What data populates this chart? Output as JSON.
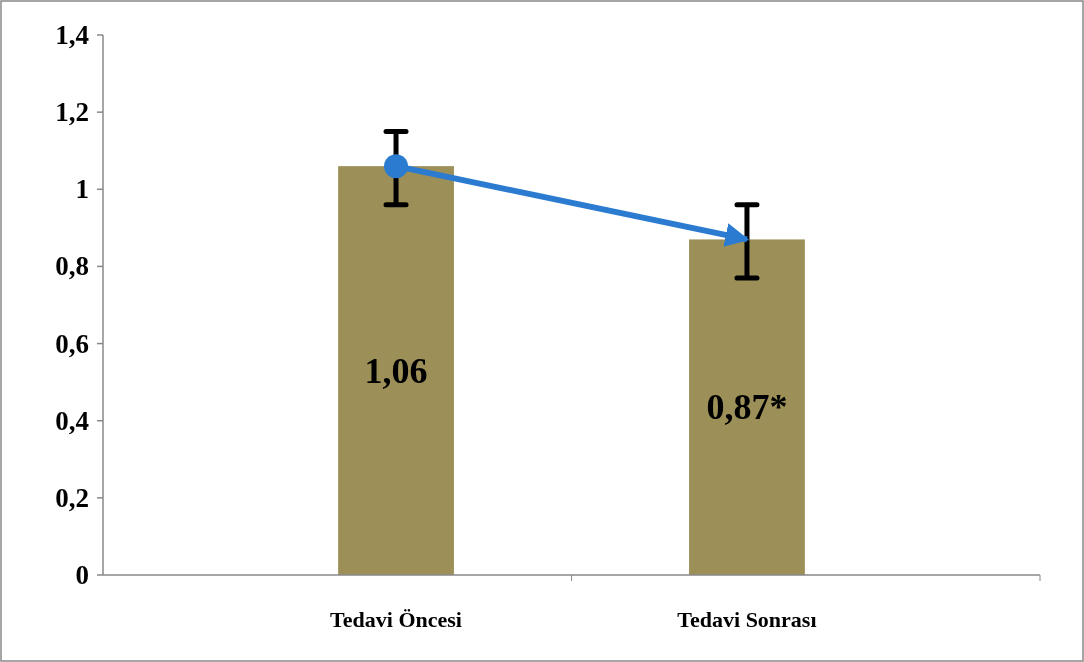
{
  "chart_data": {
    "type": "bar",
    "categories": [
      "Tedavi Öncesi",
      "Tedavi Sonrası"
    ],
    "series": [
      {
        "color": "#9c9058",
        "values": [
          1.06,
          0.87
        ],
        "value_labels": [
          "1,06",
          "0,87*"
        ]
      },
      {
        "type": "line",
        "color": "#2b7bd0",
        "values": [
          1.06,
          0.87
        ],
        "errors": [
          [
            0.96,
            1.15
          ],
          [
            0.77,
            0.96
          ]
        ]
      }
    ],
    "ylim": [
      0,
      1.4
    ],
    "yticks": [
      0,
      {
        "value": 0.2,
        "label": "0,2"
      },
      {
        "value": 0.4,
        "label": "0,4"
      },
      {
        "value": 0.6,
        "label": "0,6"
      },
      {
        "value": 0.8,
        "label": "0,8"
      },
      1,
      {
        "value": 1.2,
        "label": "1,2"
      },
      {
        "value": 1.4,
        "label": "1,4"
      }
    ],
    "grid": false,
    "marker": "circle"
  }
}
